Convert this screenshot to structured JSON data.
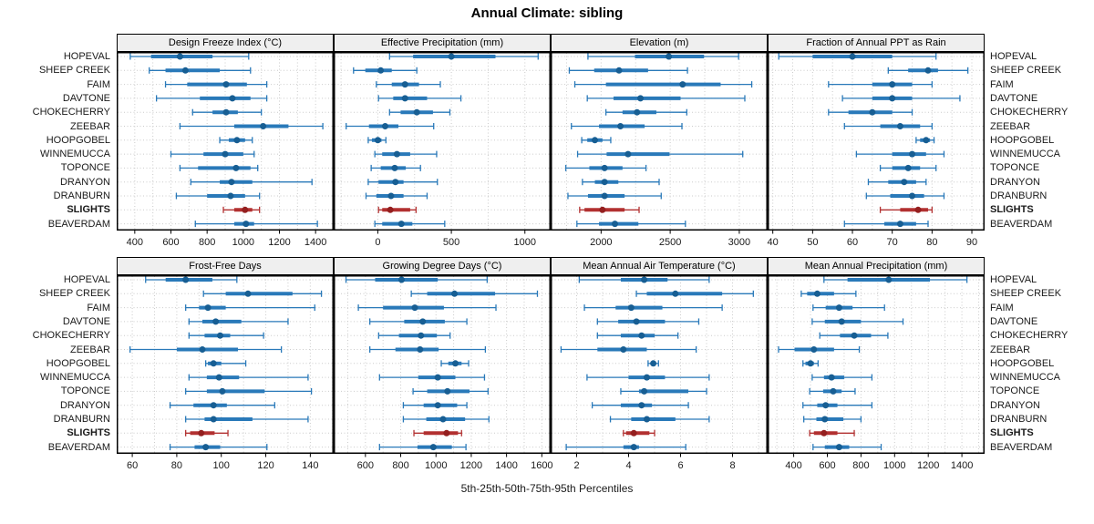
{
  "title": "Annual Climate: sibling",
  "caption": "5th-25th-50th-75th-95th Percentiles",
  "colors": {
    "series": "#2979b9",
    "series_median": "#175e93",
    "highlight": "#b23030",
    "highlight_median": "#941f1f",
    "grid": "#cbcbcb",
    "strip_bg": "#efefef",
    "border": "#000000",
    "label_text": "#1a1a1a"
  },
  "chart_data": {
    "type": "percentile-dotplot-grid",
    "rows": 2,
    "cols": 4,
    "percentiles": [
      5,
      25,
      50,
      75,
      95
    ],
    "sites": [
      "HOPEVAL",
      "SHEEP CREEK",
      "FAIM",
      "DAVTONE",
      "CHOKECHERRY",
      "ZEEBAR",
      "HOOPGOBEL",
      "WINNEMUCCA",
      "TOPONCE",
      "DRANYON",
      "DRANBURN",
      "SLIGHTS",
      "BEAVERDAM"
    ],
    "highlight_site": "SLIGHTS",
    "panels": [
      {
        "title": "Design Freeze Index (°C)",
        "xlim": [
          300,
          1500
        ],
        "ticks": [
          400,
          600,
          800,
          1000,
          1200,
          1400
        ],
        "minor_step": 100,
        "values": [
          [
            375,
            490,
            650,
            830,
            1030
          ],
          [
            480,
            570,
            680,
            870,
            1040
          ],
          [
            570,
            690,
            905,
            1020,
            1130
          ],
          [
            520,
            760,
            940,
            1040,
            1130
          ],
          [
            720,
            830,
            905,
            970,
            1100
          ],
          [
            650,
            950,
            1110,
            1250,
            1440
          ],
          [
            870,
            920,
            965,
            1010,
            1050
          ],
          [
            600,
            780,
            900,
            1000,
            1060
          ],
          [
            650,
            750,
            960,
            1040,
            1080
          ],
          [
            710,
            870,
            935,
            1050,
            1380
          ],
          [
            630,
            800,
            930,
            1010,
            1090
          ],
          [
            890,
            950,
            1010,
            1050,
            1090
          ],
          [
            735,
            950,
            1015,
            1060,
            1410
          ]
        ]
      },
      {
        "title": "Effective Precipitation (mm)",
        "xlim": [
          -300,
          1175
        ],
        "ticks": [
          0,
          500,
          1000
        ],
        "minor_step": 250,
        "values": [
          [
            80,
            240,
            500,
            800,
            1090
          ],
          [
            -165,
            -85,
            20,
            95,
            265
          ],
          [
            -10,
            95,
            185,
            280,
            425
          ],
          [
            5,
            105,
            185,
            335,
            565
          ],
          [
            80,
            155,
            265,
            375,
            490
          ],
          [
            -215,
            -60,
            50,
            140,
            380
          ],
          [
            -65,
            -40,
            0,
            25,
            55
          ],
          [
            -20,
            30,
            130,
            220,
            400
          ],
          [
            -45,
            20,
            115,
            190,
            290
          ],
          [
            -65,
            5,
            120,
            175,
            405
          ],
          [
            -80,
            -10,
            90,
            175,
            335
          ],
          [
            5,
            30,
            85,
            220,
            260
          ],
          [
            -20,
            30,
            160,
            235,
            455
          ]
        ]
      },
      {
        "title": "Elevation (m)",
        "xlim": [
          1635,
          3205
        ],
        "ticks": [
          2000,
          2500,
          3000
        ],
        "minor_step": 250,
        "values": [
          [
            1905,
            2245,
            2490,
            2745,
            2995
          ],
          [
            1770,
            1950,
            2130,
            2340,
            2625
          ],
          [
            1810,
            2035,
            2590,
            2865,
            3090
          ],
          [
            1900,
            2090,
            2285,
            2575,
            3040
          ],
          [
            2035,
            2155,
            2260,
            2400,
            2620
          ],
          [
            1785,
            1985,
            2140,
            2315,
            2585
          ],
          [
            1860,
            1900,
            1955,
            2010,
            2070
          ],
          [
            1830,
            2040,
            2195,
            2495,
            3025
          ],
          [
            1745,
            1915,
            2025,
            2155,
            2325
          ],
          [
            1865,
            1955,
            2025,
            2125,
            2420
          ],
          [
            1760,
            1905,
            2025,
            2170,
            2435
          ],
          [
            1845,
            1880,
            2010,
            2170,
            2275
          ],
          [
            1825,
            1985,
            2100,
            2270,
            2610
          ]
        ]
      },
      {
        "title": "Fraction of Annual PPT as Rain",
        "xlim": [
          38.7,
          93.2
        ],
        "ticks": [
          40,
          50,
          60,
          70,
          80,
          90
        ],
        "minor_step": 5,
        "values": [
          [
            41.5,
            50,
            60,
            70,
            81
          ],
          [
            69,
            74,
            79,
            81.5,
            89
          ],
          [
            54,
            65,
            70,
            75,
            80
          ],
          [
            57.5,
            65,
            70,
            75,
            87
          ],
          [
            54,
            59,
            65,
            70,
            75
          ],
          [
            58,
            67,
            72,
            77,
            80
          ],
          [
            76,
            77,
            78.5,
            79.5,
            80.5
          ],
          [
            61,
            70,
            75,
            78.5,
            83
          ],
          [
            67,
            70,
            74,
            77,
            81
          ],
          [
            64,
            69,
            73,
            76,
            78.5
          ],
          [
            63.5,
            69.5,
            75,
            78,
            83
          ],
          [
            67,
            72,
            76.5,
            79,
            80
          ],
          [
            58,
            68,
            72,
            76,
            79
          ]
        ]
      },
      {
        "title": "Frost-Free Days",
        "xlim": [
          53,
          150.5
        ],
        "ticks": [
          60,
          80,
          100,
          120,
          140
        ],
        "minor_step": 10,
        "values": [
          [
            66,
            75,
            84,
            96,
            107
          ],
          [
            92,
            102,
            112,
            132,
            145
          ],
          [
            84,
            90,
            94,
            102,
            142
          ],
          [
            85.5,
            91.5,
            97.5,
            109,
            130
          ],
          [
            85.5,
            92.5,
            99.5,
            104,
            119
          ],
          [
            59,
            80,
            91.5,
            107.5,
            127
          ],
          [
            93,
            94,
            96.5,
            100,
            111
          ],
          [
            85.5,
            93.5,
            99,
            108,
            139
          ],
          [
            84,
            93.5,
            100.5,
            119.5,
            140.5
          ],
          [
            77,
            87.5,
            96.5,
            102.5,
            124
          ],
          [
            84,
            92.5,
            96.5,
            114,
            139
          ],
          [
            84,
            86,
            91,
            97,
            103
          ],
          [
            77,
            88,
            93,
            99.5,
            120.5
          ]
        ]
      },
      {
        "title": "Growing Degree Days (°C)",
        "xlim": [
          420,
          1650
        ],
        "ticks": [
          600,
          800,
          1000,
          1200,
          1400,
          1600
        ],
        "minor_step": 100,
        "values": [
          [
            490,
            655,
            805,
            1010,
            1290
          ],
          [
            860,
            950,
            1105,
            1335,
            1575
          ],
          [
            560,
            700,
            880,
            1045,
            1340
          ],
          [
            625,
            820,
            925,
            1050,
            1175
          ],
          [
            675,
            790,
            915,
            1005,
            1080
          ],
          [
            625,
            770,
            910,
            1015,
            1280
          ],
          [
            1030,
            1070,
            1110,
            1145,
            1185
          ],
          [
            680,
            900,
            1010,
            1110,
            1275
          ],
          [
            870,
            950,
            1065,
            1190,
            1295
          ],
          [
            815,
            930,
            1010,
            1120,
            1175
          ],
          [
            815,
            945,
            1040,
            1165,
            1300
          ],
          [
            875,
            930,
            1060,
            1125,
            1145
          ],
          [
            680,
            895,
            985,
            1090,
            1170
          ]
        ]
      },
      {
        "title": "Mean Annual Air Temperature (°C)",
        "xlim": [
          1.0,
          9.35
        ],
        "ticks": [
          2,
          4,
          6,
          8
        ],
        "minor_step": 1,
        "values": [
          [
            2.1,
            3.7,
            4.6,
            5.5,
            7.1
          ],
          [
            4.3,
            4.7,
            5.8,
            7.6,
            8.8
          ],
          [
            2.3,
            3.5,
            4.1,
            5.3,
            7.6
          ],
          [
            2.8,
            3.6,
            4.3,
            5.4,
            6.7
          ],
          [
            2.8,
            3.7,
            4.5,
            5.0,
            5.9
          ],
          [
            1.4,
            2.8,
            3.8,
            4.7,
            6.6
          ],
          [
            4.75,
            4.85,
            4.95,
            5.05,
            5.15
          ],
          [
            2.4,
            4.0,
            4.7,
            5.4,
            7.1
          ],
          [
            3.7,
            4.4,
            4.6,
            6.3,
            7.0
          ],
          [
            2.6,
            3.7,
            4.5,
            4.9,
            6.3
          ],
          [
            3.3,
            4.1,
            4.7,
            5.8,
            7.1
          ],
          [
            3.8,
            3.9,
            4.2,
            4.8,
            5.0
          ],
          [
            1.6,
            3.8,
            4.2,
            4.4,
            6.2
          ]
        ]
      },
      {
        "title": "Mean Annual Precipitation (mm)",
        "xlim": [
          245,
          1535
        ],
        "ticks": [
          400,
          600,
          800,
          1000,
          1200,
          1400
        ],
        "minor_step": 100,
        "values": [
          [
            580,
            720,
            965,
            1210,
            1430
          ],
          [
            445,
            480,
            540,
            640,
            770
          ],
          [
            515,
            590,
            670,
            750,
            940
          ],
          [
            510,
            585,
            685,
            800,
            1050
          ],
          [
            555,
            675,
            760,
            860,
            960
          ],
          [
            310,
            405,
            520,
            640,
            790
          ],
          [
            455,
            470,
            500,
            520,
            545
          ],
          [
            510,
            580,
            625,
            700,
            865
          ],
          [
            495,
            575,
            635,
            685,
            765
          ],
          [
            455,
            540,
            590,
            660,
            865
          ],
          [
            460,
            535,
            585,
            695,
            800
          ],
          [
            495,
            520,
            580,
            660,
            760
          ],
          [
            515,
            585,
            670,
            730,
            920
          ]
        ]
      }
    ]
  }
}
